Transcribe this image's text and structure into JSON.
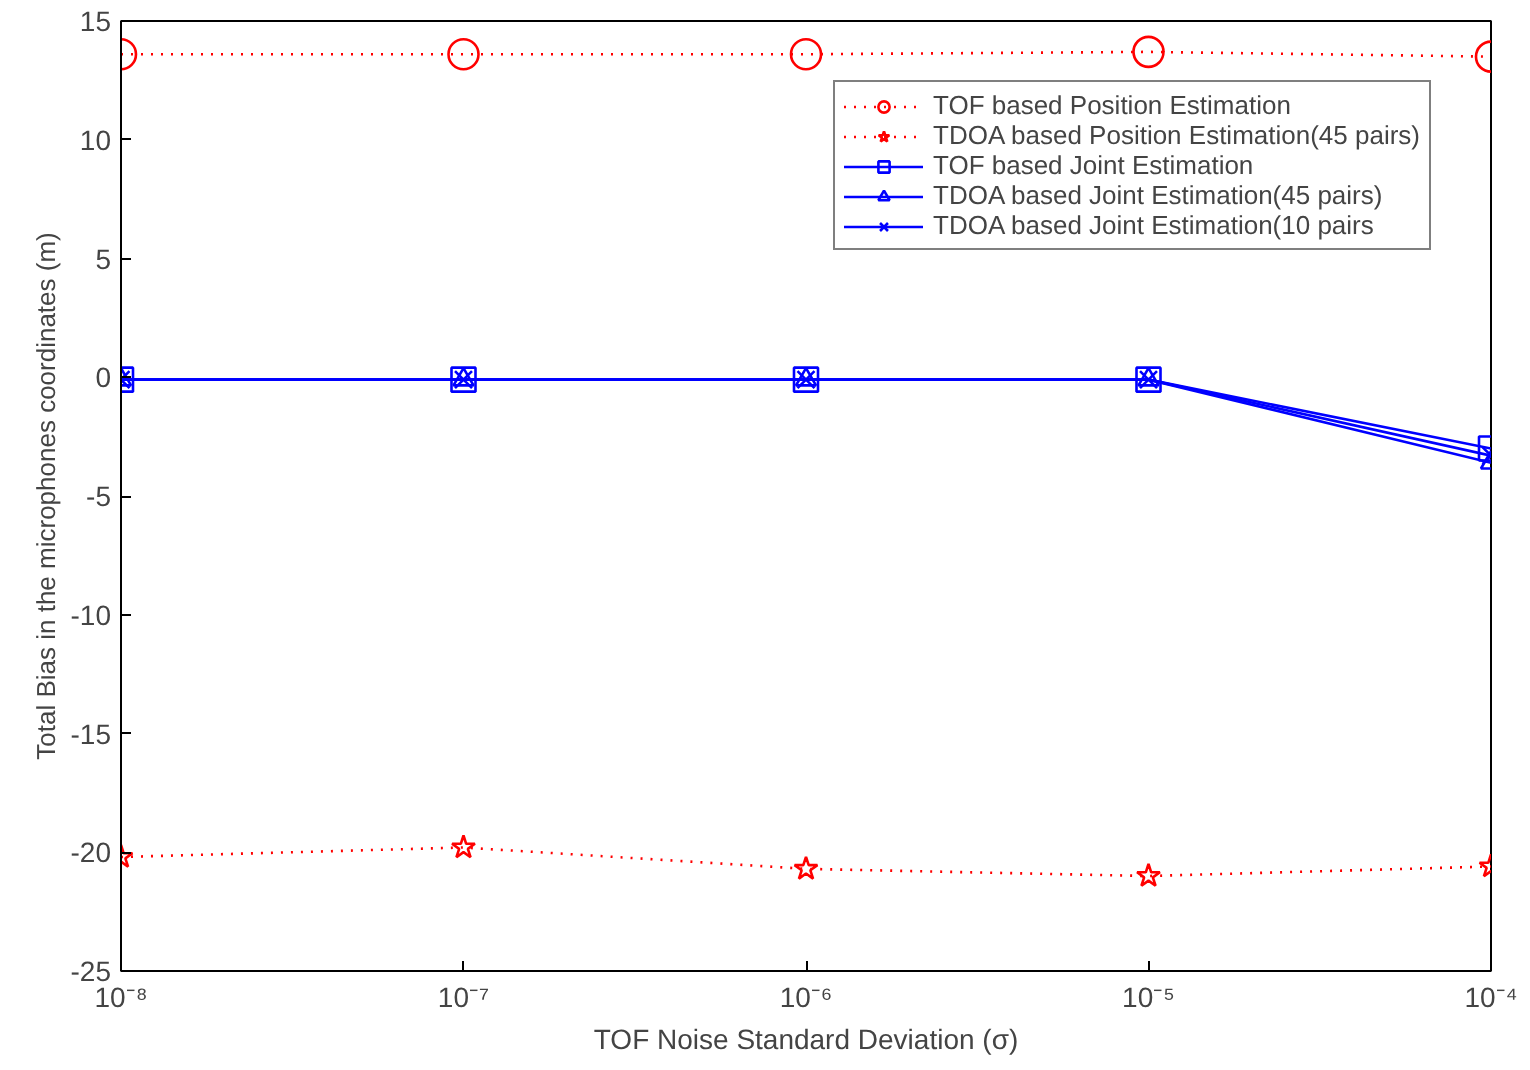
{
  "chart_data": {
    "type": "line",
    "xlabel": "TOF Noise Standard Deviation (σ)",
    "ylabel": "Total Bias in the microphones coordinates (m)",
    "x": [
      1e-08,
      1e-07,
      1e-06,
      1e-05,
      0.0001
    ],
    "log": "x",
    "xlim": [
      1e-08,
      0.0001
    ],
    "ylim": [
      -25,
      15
    ],
    "xticks": [
      {
        "value": 1e-08,
        "label": "10⁻⁸"
      },
      {
        "value": 1e-07,
        "label": "10⁻⁷"
      },
      {
        "value": 1e-06,
        "label": "10⁻⁶"
      },
      {
        "value": 1e-05,
        "label": "10⁻⁵"
      },
      {
        "value": 0.0001,
        "label": "10⁻⁴"
      }
    ],
    "yticks": [
      -25,
      -20,
      -15,
      -10,
      -5,
      0,
      5,
      10,
      15
    ],
    "grid": false,
    "legend": "top right",
    "series": [
      {
        "name": "TOF based Position Estimation",
        "color": "#ff0000",
        "marker": "circle",
        "line_style": "dotted",
        "values": [
          13.6,
          13.6,
          13.6,
          13.7,
          13.5
        ]
      },
      {
        "name": "TDOA based Position Estimation(45 pairs)",
        "color": "#ff0000",
        "marker": "star",
        "line_style": "dotted",
        "values": [
          -20.2,
          -19.8,
          -20.7,
          -21.0,
          -20.6
        ]
      },
      {
        "name": "TOF based Joint Estimation",
        "color": "#0000ff",
        "marker": "square",
        "line_style": "solid",
        "values": [
          -0.1,
          -0.1,
          -0.1,
          -0.1,
          -3.0
        ]
      },
      {
        "name": "TDOA based Joint Estimation(45 pairs)",
        "color": "#0000ff",
        "marker": "triangle",
        "line_style": "solid",
        "values": [
          -0.1,
          -0.1,
          -0.1,
          -0.1,
          -3.6
        ]
      },
      {
        "name": "TDOA based Joint Estimation(10 pairs",
        "color": "#0000ff",
        "marker": "cross",
        "line_style": "solid",
        "values": [
          -0.1,
          -0.1,
          -0.1,
          -0.1,
          -3.3
        ]
      }
    ]
  }
}
